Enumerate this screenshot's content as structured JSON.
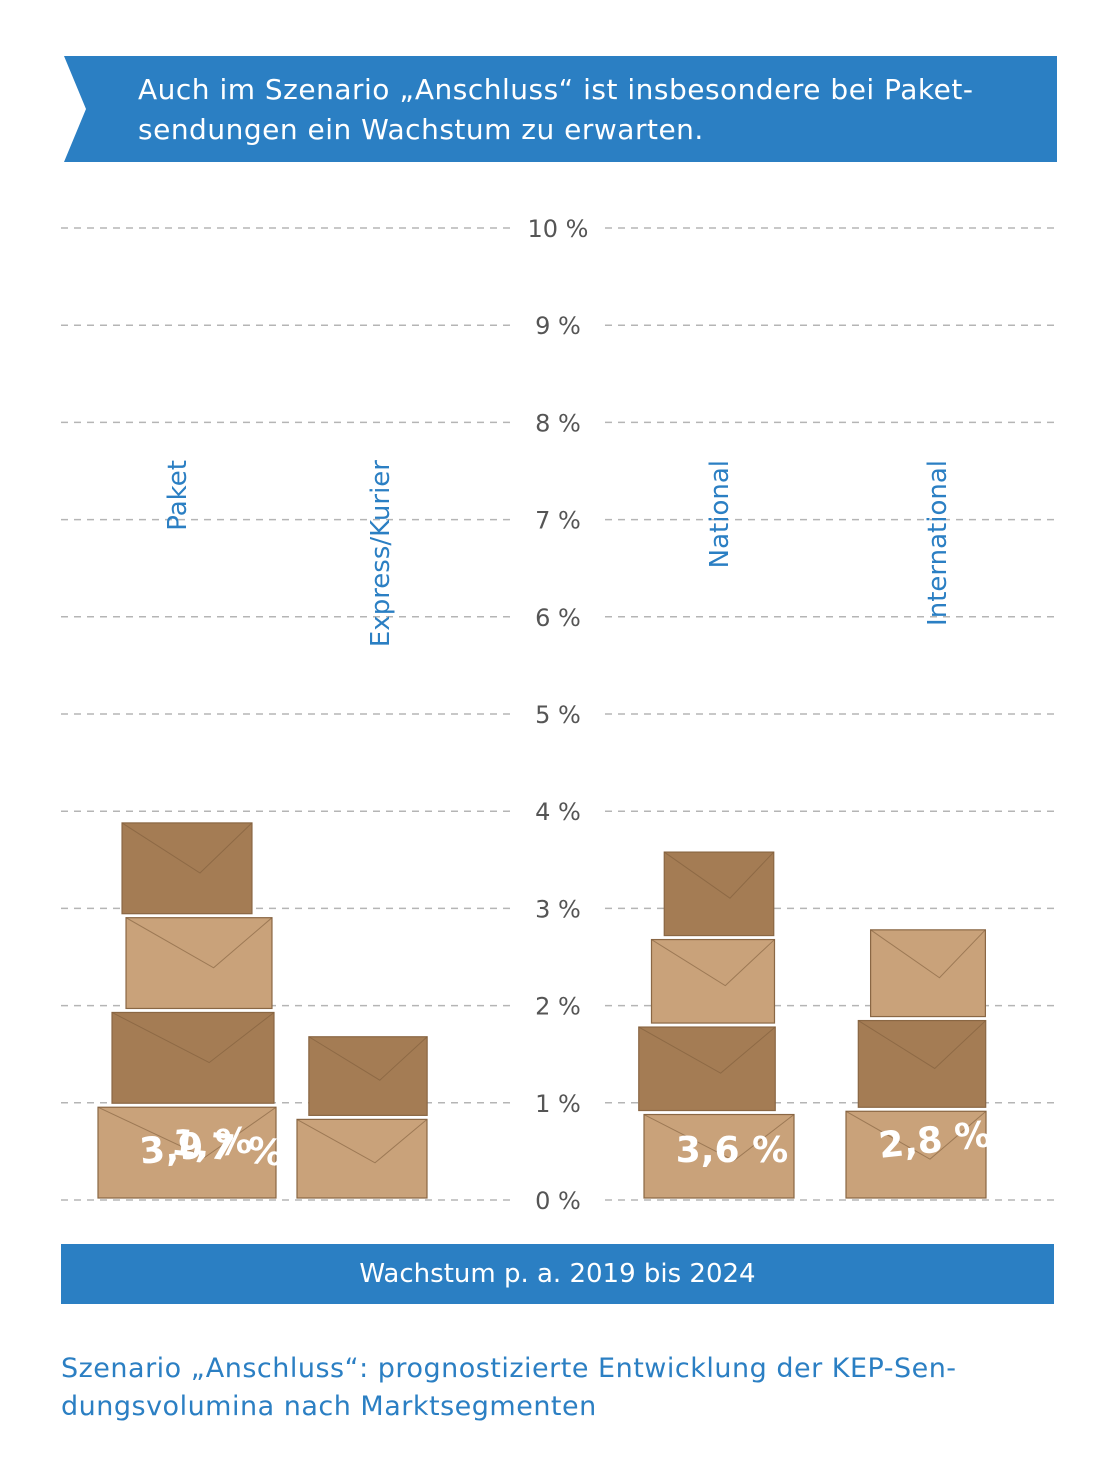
{
  "header": {
    "lines": [
      "Auch im Szenario „Anschluss“ ist insbesondere bei Paket-",
      "sendungen ein Wachstum zu erwarten."
    ]
  },
  "chart_data": {
    "type": "bar",
    "categories": [
      "Paket",
      "Express/Kurier",
      "National",
      "International"
    ],
    "values": [
      3.9,
      1.7,
      3.6,
      2.8
    ],
    "value_labels": [
      "3,9 %",
      "1,7 %",
      "3,6 %",
      "2,8 %"
    ],
    "y_ticks": [
      "0 %",
      "1 %",
      "2 %",
      "3 %",
      "4 %",
      "5 %",
      "6 %",
      "7 %",
      "8 %",
      "9 %",
      "10 %"
    ],
    "ylim": [
      0,
      10
    ],
    "xlabel": "Wachstum p. a. 2019 bis 2024",
    "grid": true,
    "bar_style": "stacked cardboard boxes",
    "colors": {
      "accent": "#2b7fc3",
      "box_light": "#c9a27a",
      "box_dark": "#a47c54",
      "grid": "#b5b5b5",
      "tick_text": "#555555"
    }
  },
  "footer": {
    "caption_lines": [
      "Szenario „Anschluss“: prognostizierte Entwicklung der KEP-Sen-",
      "dungsvolumina nach Marktsegmenten"
    ]
  }
}
